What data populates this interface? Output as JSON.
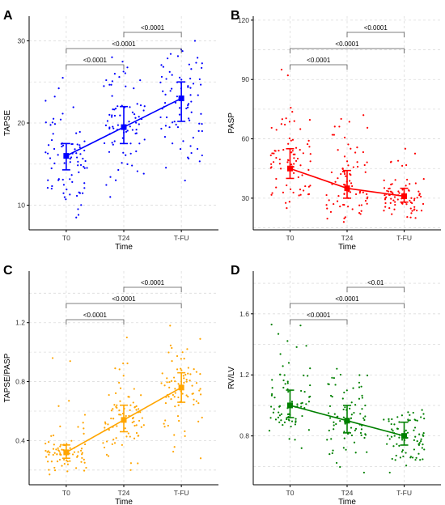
{
  "chart_data": [
    {
      "panel_label": "A",
      "type": "scatter",
      "color": "#0000FF",
      "ylabel": "TAPSE",
      "xlabel": "Time",
      "categories": [
        "T0",
        "T24",
        "T-FU"
      ],
      "ylim": [
        7,
        33
      ],
      "yticks": [
        10,
        20,
        30
      ],
      "grid": true,
      "series": [
        {
          "summary": "median-iqr",
          "median": [
            16,
            19.5,
            23
          ],
          "q1": [
            14.3,
            17.5,
            20.2
          ],
          "q3": [
            17.5,
            22,
            25
          ],
          "points_range": [
            [
              8.5,
              25.5
            ],
            [
              11,
              28
            ],
            [
              13,
              30
            ]
          ],
          "n_points": 80
        }
      ],
      "comparisons": [
        {
          "from": "T0",
          "to": "T24",
          "label": "<0.0001"
        },
        {
          "from": "T0",
          "to": "T-FU",
          "label": "<0.0001"
        },
        {
          "from": "T24",
          "to": "T-FU",
          "label": "<0.0001"
        }
      ]
    },
    {
      "panel_label": "B",
      "type": "scatter",
      "color": "#FF0000",
      "ylabel": "PASP",
      "xlabel": "Time",
      "categories": [
        "T0",
        "T24",
        "T-FU"
      ],
      "ylim": [
        14,
        122
      ],
      "yticks": [
        30,
        60,
        90,
        120
      ],
      "grid": true,
      "series": [
        {
          "summary": "median-iqr",
          "median": [
            45,
            35,
            31
          ],
          "q1": [
            40,
            30,
            28
          ],
          "q3": [
            55,
            44,
            35
          ],
          "points_range": [
            [
              25,
              95
            ],
            [
              18,
              72
            ],
            [
              20,
              55
            ]
          ],
          "n_points": 80
        }
      ],
      "comparisons": [
        {
          "from": "T0",
          "to": "T24",
          "label": "<0.0001"
        },
        {
          "from": "T0",
          "to": "T-FU",
          "label": "<0.0001"
        },
        {
          "from": "T24",
          "to": "T-FU",
          "label": "<0.0001"
        }
      ]
    },
    {
      "panel_label": "C",
      "type": "scatter",
      "color": "#FFA500",
      "ylabel": "TAPSE/PASP",
      "xlabel": "Time",
      "categories": [
        "T0",
        "T24",
        "T-FU"
      ],
      "ylim": [
        0.1,
        1.55
      ],
      "yticks": [
        0.4,
        0.8,
        1.2
      ],
      "grid": true,
      "series": [
        {
          "summary": "median-iqr",
          "median": [
            0.32,
            0.54,
            0.76
          ],
          "q1": [
            0.28,
            0.46,
            0.66
          ],
          "q3": [
            0.37,
            0.64,
            0.86
          ],
          "points_range": [
            [
              0.17,
              0.96
            ],
            [
              0.2,
              1.1
            ],
            [
              0.28,
              1.18
            ]
          ],
          "n_points": 80
        }
      ],
      "comparisons": [
        {
          "from": "T0",
          "to": "T24",
          "label": "<0.0001"
        },
        {
          "from": "T0",
          "to": "T-FU",
          "label": "<0.0001"
        },
        {
          "from": "T24",
          "to": "T-FU",
          "label": "<0.0001"
        }
      ]
    },
    {
      "panel_label": "D",
      "type": "scatter",
      "color": "#008000",
      "ylabel": "RV/LV",
      "xlabel": "Time",
      "categories": [
        "T0",
        "T24",
        "T-FU"
      ],
      "ylim": [
        0.48,
        1.88
      ],
      "yticks": [
        0.8,
        1.2,
        1.6
      ],
      "grid": true,
      "series": [
        {
          "summary": "median-iqr",
          "median": [
            1.0,
            0.9,
            0.8
          ],
          "q1": [
            0.92,
            0.82,
            0.74
          ],
          "q3": [
            1.1,
            1.0,
            0.89
          ],
          "points_range": [
            [
              0.72,
              1.53
            ],
            [
              0.56,
              1.24
            ],
            [
              0.56,
              0.97
            ]
          ],
          "n_points": 80
        }
      ],
      "comparisons": [
        {
          "from": "T0",
          "to": "T24",
          "label": "<0.0001"
        },
        {
          "from": "T0",
          "to": "T-FU",
          "label": "<0.0001"
        },
        {
          "from": "T24",
          "to": "T-FU",
          "label": "<0.01"
        }
      ]
    }
  ]
}
